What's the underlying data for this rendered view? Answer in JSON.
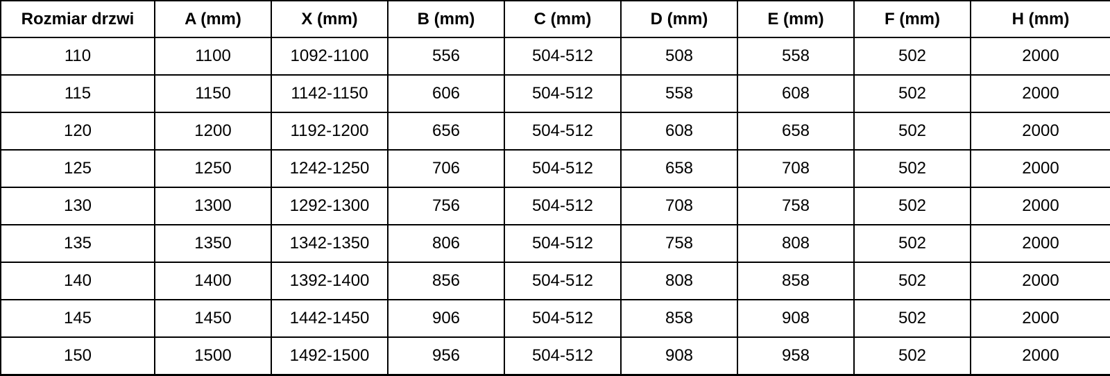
{
  "table": {
    "name": "door-size-specifications",
    "headers": [
      "Rozmiar drzwi",
      "A (mm)",
      "X (mm)",
      "B (mm)",
      "C (mm)",
      "D (mm)",
      "E (mm)",
      "F (mm)",
      "H (mm)"
    ],
    "rows": [
      [
        "110",
        "1100",
        "1092-1100",
        "556",
        "504-512",
        "508",
        "558",
        "502",
        "2000"
      ],
      [
        "115",
        "1150",
        "1142-1150",
        "606",
        "504-512",
        "558",
        "608",
        "502",
        "2000"
      ],
      [
        "120",
        "1200",
        "1192-1200",
        "656",
        "504-512",
        "608",
        "658",
        "502",
        "2000"
      ],
      [
        "125",
        "1250",
        "1242-1250",
        "706",
        "504-512",
        "658",
        "708",
        "502",
        "2000"
      ],
      [
        "130",
        "1300",
        "1292-1300",
        "756",
        "504-512",
        "708",
        "758",
        "502",
        "2000"
      ],
      [
        "135",
        "1350",
        "1342-1350",
        "806",
        "504-512",
        "758",
        "808",
        "502",
        "2000"
      ],
      [
        "140",
        "1400",
        "1392-1400",
        "856",
        "504-512",
        "808",
        "858",
        "502",
        "2000"
      ],
      [
        "145",
        "1450",
        "1442-1450",
        "906",
        "504-512",
        "858",
        "908",
        "502",
        "2000"
      ],
      [
        "150",
        "1500",
        "1492-1500",
        "956",
        "504-512",
        "908",
        "958",
        "502",
        "2000"
      ]
    ]
  },
  "colors": {
    "border": "#000000",
    "background": "#ffffff",
    "text": "#000000"
  }
}
